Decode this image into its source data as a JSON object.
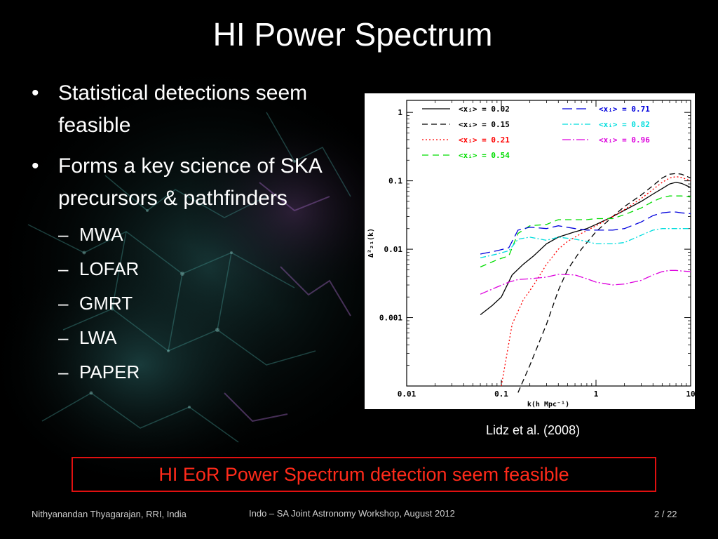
{
  "slide": {
    "title": "HI Power Spectrum",
    "bullets": [
      {
        "symbol": "•",
        "text": "Statistical detections seem feasible"
      },
      {
        "symbol": "•",
        "text": "Forms a key science of SKA precursors & pathfinders"
      }
    ],
    "subitems_symbol": "–",
    "subitems": [
      "MWA",
      "LOFAR",
      "GMRT",
      "LWA",
      "PAPER"
    ],
    "citation": "Lidz et al. (2008)",
    "highlight": "HI  EoR Power Spectrum detection seem feasible",
    "footer": {
      "author": "Nithyanandan Thyagarajan, RRI, India",
      "event": "Indo – SA Joint Astronomy Workshop, August 2012",
      "page": "2 / 22"
    }
  },
  "chart_data": {
    "type": "line",
    "xscale": "log",
    "yscale": "log",
    "xlim": [
      0.01,
      10
    ],
    "ylim": [
      0.0001,
      1.5
    ],
    "xlabel": "k(h Mpc⁻¹)",
    "ylabel": "Δ²₂₁(k)",
    "xticks": [
      {
        "value": 0.01,
        "label": "0.01"
      },
      {
        "value": 0.1,
        "label": "0.1"
      },
      {
        "value": 1,
        "label": "1"
      },
      {
        "value": 10,
        "label": "10"
      }
    ],
    "yticks": [
      {
        "value": 1,
        "label": "1"
      },
      {
        "value": 0.1,
        "label": "0.1"
      },
      {
        "value": 0.01,
        "label": "0.01"
      },
      {
        "value": 0.001,
        "label": "0.001"
      }
    ],
    "legend_placement": "top",
    "series": [
      {
        "name": "<xᵢ> = 0.02",
        "color": "#000000",
        "dash": "solid",
        "legend_col": 0,
        "legend_row": 0,
        "x": [
          0.06,
          0.08,
          0.1,
          0.13,
          0.17,
          0.22,
          0.3,
          0.4,
          0.6,
          0.8,
          1.0,
          1.5,
          2.0,
          3.0,
          4.0,
          5.0,
          6.0,
          7.0,
          8.0,
          10.0
        ],
        "y": [
          0.0011,
          0.0015,
          0.002,
          0.0042,
          0.006,
          0.008,
          0.012,
          0.015,
          0.018,
          0.02,
          0.023,
          0.03,
          0.037,
          0.05,
          0.064,
          0.077,
          0.09,
          0.095,
          0.092,
          0.08
        ]
      },
      {
        "name": "<xᵢ> = 0.15",
        "color": "#000000",
        "dash": "8,5",
        "legend_col": 0,
        "legend_row": 1,
        "x": [
          0.15,
          0.2,
          0.3,
          0.4,
          0.5,
          0.7,
          1.0,
          1.5,
          2.0,
          3.0,
          4.0,
          5.0,
          6.0,
          7.0,
          8.0,
          10.0
        ],
        "y": [
          8e-05,
          0.0002,
          0.0008,
          0.0025,
          0.005,
          0.01,
          0.018,
          0.03,
          0.042,
          0.062,
          0.085,
          0.11,
          0.125,
          0.128,
          0.125,
          0.11
        ]
      },
      {
        "name": "<xᵢ> = 0.21",
        "color": "#ff0000",
        "dash": "2,3",
        "legend_col": 0,
        "legend_row": 2,
        "x": [
          0.1,
          0.13,
          0.17,
          0.22,
          0.3,
          0.4,
          0.5,
          0.7,
          1.0,
          1.5,
          2.0,
          3.0,
          4.0,
          5.0,
          6.0,
          7.0,
          8.0,
          10.0
        ],
        "y": [
          0.0001,
          0.0008,
          0.0018,
          0.003,
          0.006,
          0.01,
          0.013,
          0.017,
          0.022,
          0.03,
          0.038,
          0.055,
          0.075,
          0.095,
          0.11,
          0.115,
          0.112,
          0.1
        ]
      },
      {
        "name": "<xᵢ> = 0.54",
        "color": "#00dd00",
        "dash": "9,6",
        "legend_col": 0,
        "legend_row": 3,
        "x": [
          0.06,
          0.09,
          0.12,
          0.15,
          0.2,
          0.3,
          0.4,
          0.6,
          0.8,
          1.0,
          1.5,
          2.0,
          3.0,
          4.0,
          5.0,
          6.0,
          7.0,
          8.0,
          10.0
        ],
        "y": [
          0.0055,
          0.007,
          0.008,
          0.017,
          0.022,
          0.023,
          0.027,
          0.027,
          0.027,
          0.028,
          0.028,
          0.032,
          0.04,
          0.05,
          0.057,
          0.06,
          0.06,
          0.06,
          0.058
        ]
      },
      {
        "name": "<xᵢ> = 0.71",
        "color": "#0000dd",
        "dash": "14,6",
        "legend_col": 1,
        "legend_row": 0,
        "x": [
          0.06,
          0.09,
          0.12,
          0.15,
          0.2,
          0.3,
          0.4,
          0.6,
          0.8,
          1.0,
          1.5,
          2.0,
          3.0,
          4.0,
          5.0,
          6.0,
          7.0,
          8.0,
          10.0
        ],
        "y": [
          0.0085,
          0.0095,
          0.0105,
          0.019,
          0.021,
          0.02,
          0.022,
          0.02,
          0.019,
          0.019,
          0.019,
          0.02,
          0.025,
          0.031,
          0.034,
          0.035,
          0.035,
          0.034,
          0.033
        ]
      },
      {
        "name": "<xᵢ> = 0.82",
        "color": "#00dddd",
        "dash": "8,3,2,3",
        "legend_col": 1,
        "legend_row": 1,
        "x": [
          0.06,
          0.09,
          0.12,
          0.15,
          0.2,
          0.3,
          0.4,
          0.6,
          0.8,
          1.0,
          1.5,
          2.0,
          3.0,
          4.0,
          5.0,
          6.0,
          7.0,
          8.0,
          10.0
        ],
        "y": [
          0.0075,
          0.0085,
          0.0095,
          0.014,
          0.015,
          0.0135,
          0.015,
          0.014,
          0.013,
          0.012,
          0.012,
          0.0125,
          0.016,
          0.019,
          0.02,
          0.02,
          0.02,
          0.02,
          0.02
        ]
      },
      {
        "name": "<xᵢ> = 0.96",
        "color": "#dd00dd",
        "dash": "12,3,2,3",
        "legend_col": 1,
        "legend_row": 2,
        "x": [
          0.06,
          0.09,
          0.12,
          0.15,
          0.2,
          0.3,
          0.4,
          0.6,
          0.8,
          1.0,
          1.5,
          2.0,
          3.0,
          4.0,
          5.0,
          6.0,
          7.0,
          8.0,
          10.0
        ],
        "y": [
          0.0022,
          0.0028,
          0.0033,
          0.0036,
          0.0037,
          0.0039,
          0.0043,
          0.0042,
          0.0037,
          0.0033,
          0.003,
          0.0031,
          0.0035,
          0.0042,
          0.0047,
          0.0049,
          0.0049,
          0.0048,
          0.0047
        ]
      }
    ]
  }
}
